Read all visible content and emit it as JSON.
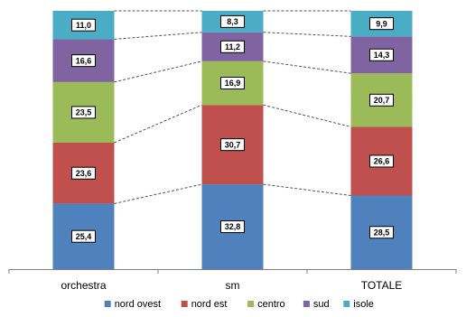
{
  "chart_data": {
    "type": "bar",
    "stacked": true,
    "percent_stacked": true,
    "categories": [
      "orchestra",
      "sm",
      "TOTALE"
    ],
    "series": [
      {
        "name": "nord ovest",
        "color": "#4F81BD",
        "values": [
          25.4,
          32.8,
          28.5
        ]
      },
      {
        "name": "nord est",
        "color": "#C0504D",
        "values": [
          23.6,
          30.7,
          26.6
        ]
      },
      {
        "name": "centro",
        "color": "#9BBB59",
        "values": [
          23.5,
          16.9,
          20.7
        ]
      },
      {
        "name": "sud",
        "color": "#8064A2",
        "values": [
          16.6,
          11.2,
          14.3
        ]
      },
      {
        "name": "isole",
        "color": "#4BACC6",
        "values": [
          11.0,
          8.3,
          9.9
        ]
      }
    ],
    "data_labels": [
      [
        "25,4",
        "32,8",
        "28,5"
      ],
      [
        "23,6",
        "30,7",
        "26,6"
      ],
      [
        "23,5",
        "16,9",
        "20,7"
      ],
      [
        "16,6",
        "11,2",
        "14,3"
      ],
      [
        "11,0",
        "8,3",
        "9,9"
      ]
    ],
    "series_lines": true,
    "legend_position": "bottom",
    "grid": false,
    "ylim": [
      0,
      100
    ]
  }
}
